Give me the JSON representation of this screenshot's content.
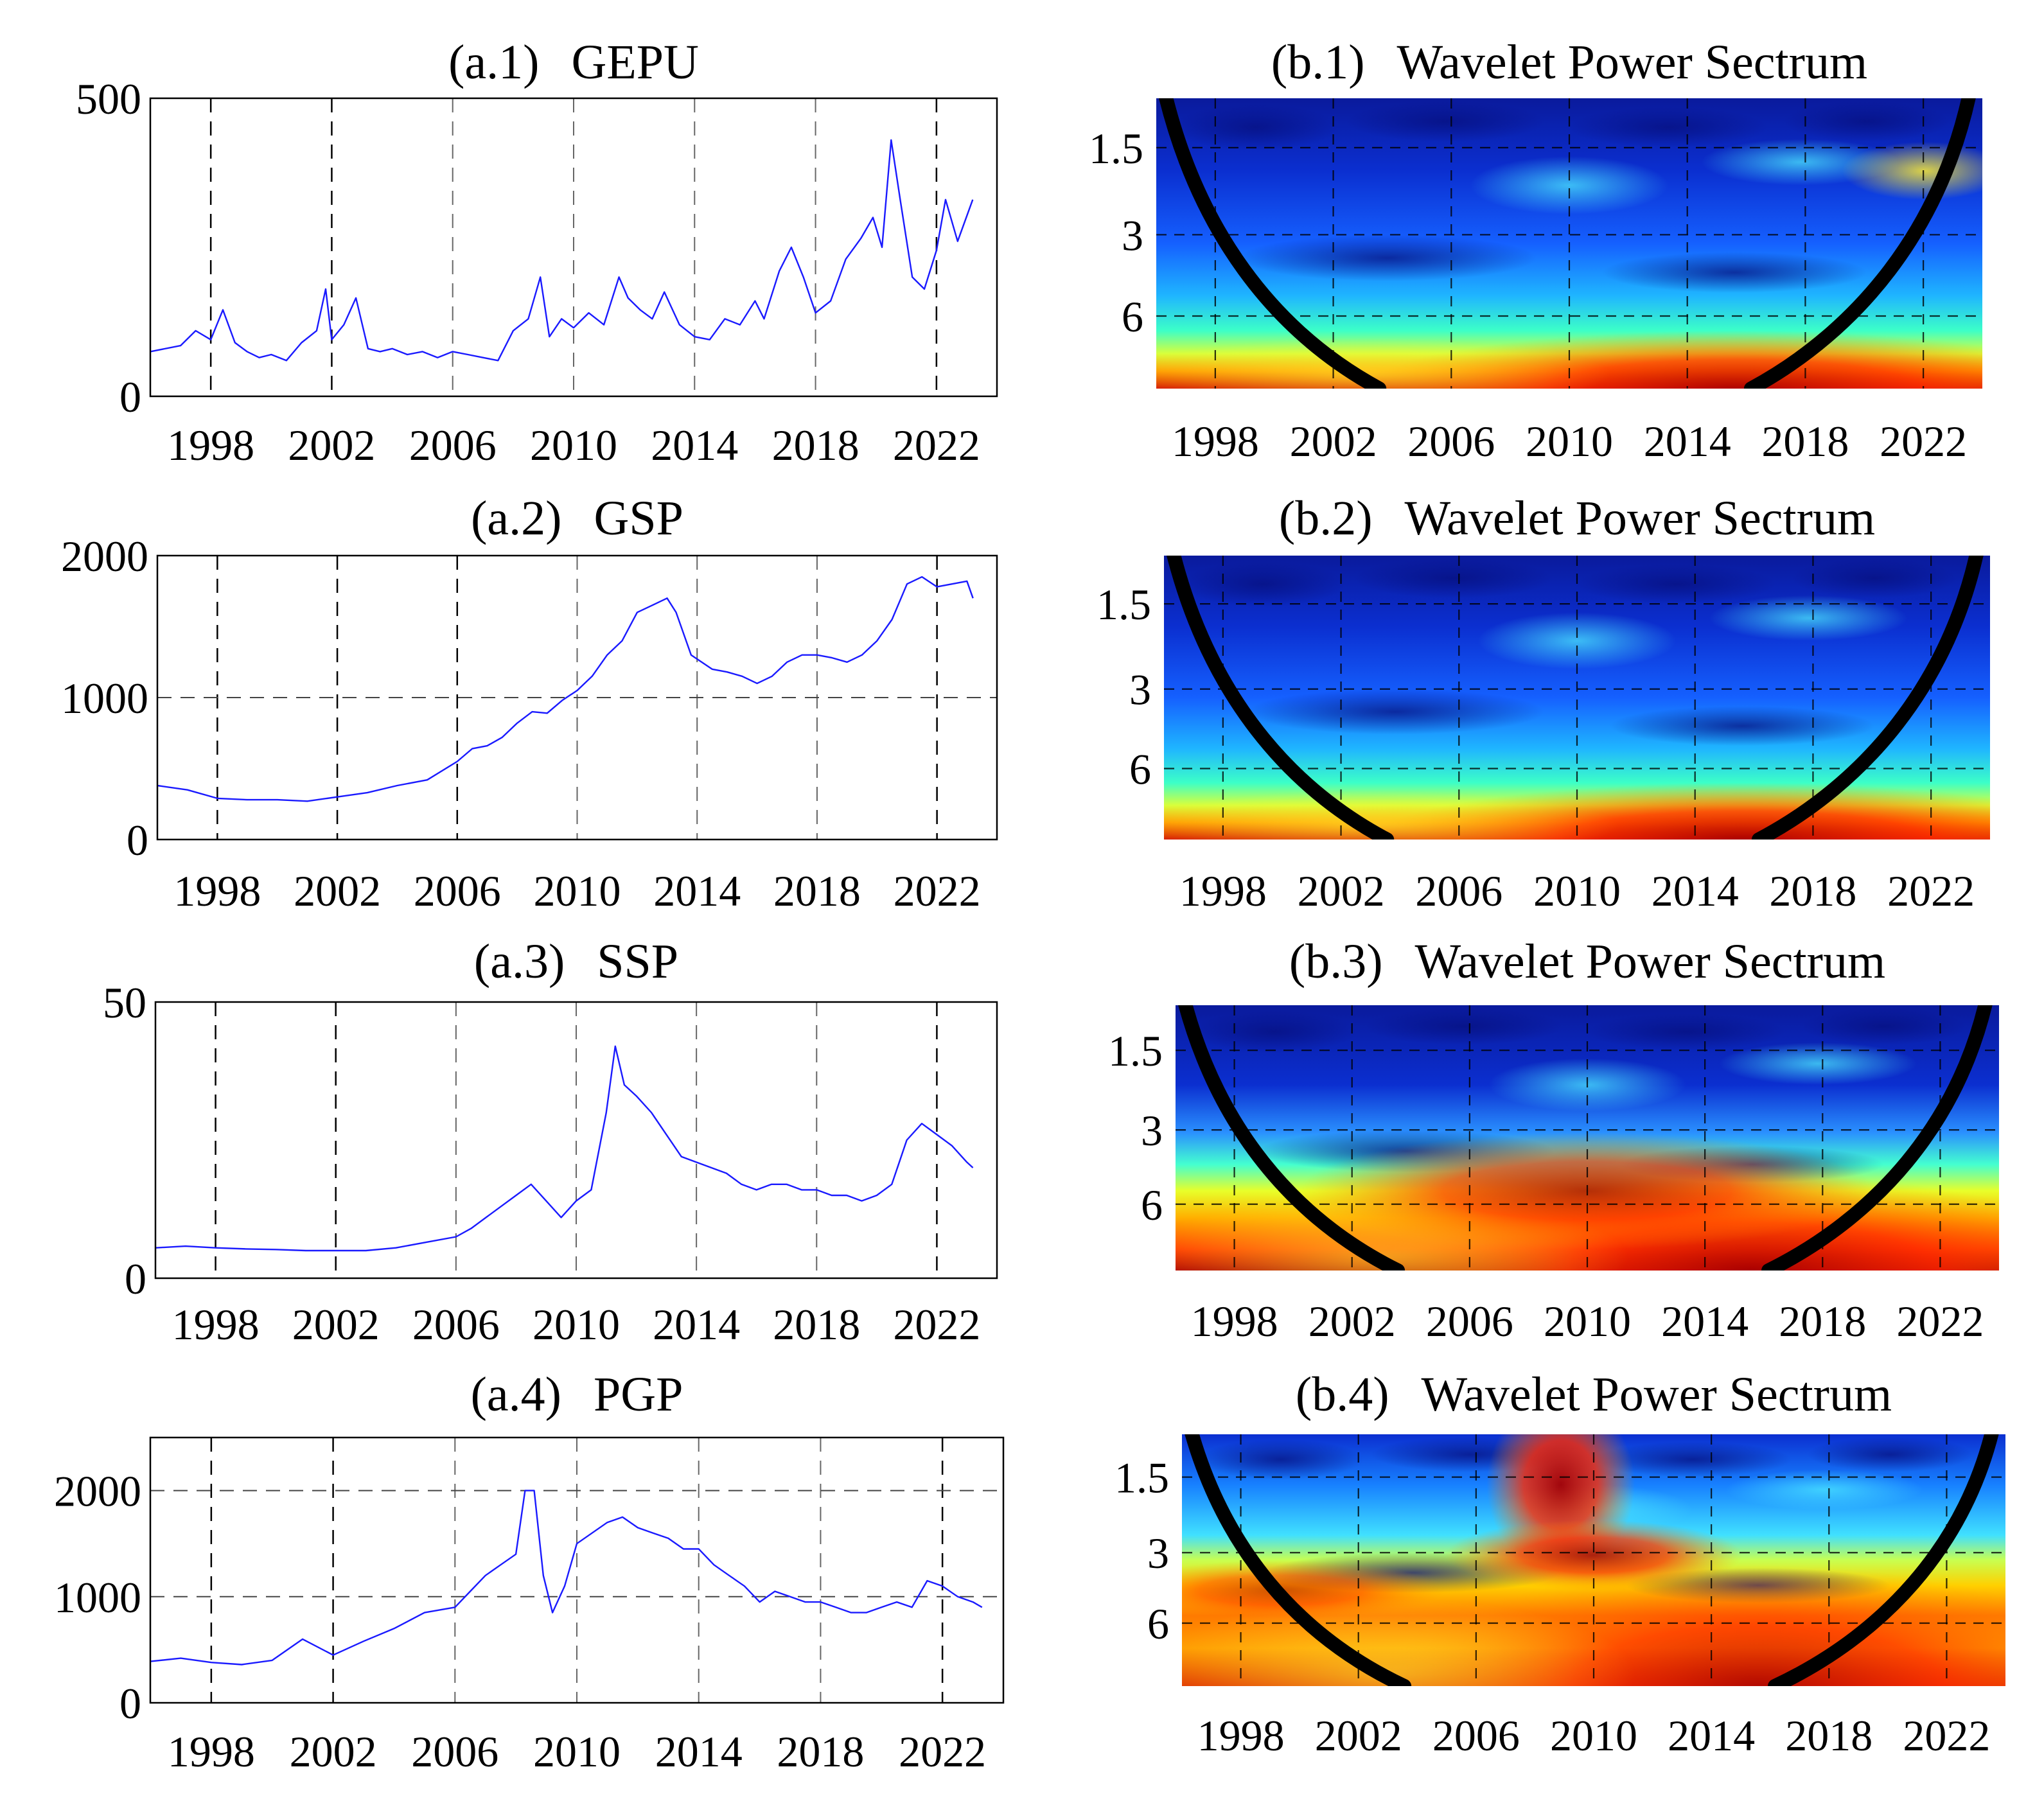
{
  "chart_data": [
    {
      "id": "a1",
      "type": "line",
      "title_id": "(a.1)",
      "title_name": "GEPU",
      "ylim": [
        0,
        500
      ],
      "yticks": [
        0,
        500
      ],
      "xlim": [
        1996.0,
        2024.0
      ],
      "xticks": [
        1998,
        2002,
        2006,
        2010,
        2014,
        2018,
        2022
      ],
      "vlines": [
        1998,
        2002,
        2006,
        2010,
        2014,
        2018,
        2022
      ],
      "dark_vlines": [
        1998,
        2002,
        2022
      ],
      "hlines": [],
      "x": [
        1996.0,
        1997.0,
        1997.5,
        1998.0,
        1998.4,
        1998.8,
        1999.2,
        1999.6,
        2000.0,
        2000.5,
        2001.0,
        2001.5,
        2001.8,
        2002.0,
        2002.4,
        2002.8,
        2003.2,
        2003.6,
        2004.0,
        2004.5,
        2005.0,
        2005.5,
        2006.0,
        2006.5,
        2007.0,
        2007.5,
        2008.0,
        2008.5,
        2008.9,
        2009.2,
        2009.6,
        2010.0,
        2010.5,
        2011.0,
        2011.5,
        2011.8,
        2012.2,
        2012.6,
        2013.0,
        2013.5,
        2014.0,
        2014.5,
        2015.0,
        2015.5,
        2016.0,
        2016.3,
        2016.8,
        2017.2,
        2017.6,
        2018.0,
        2018.5,
        2019.0,
        2019.5,
        2019.9,
        2020.2,
        2020.5,
        2020.8,
        2021.2,
        2021.6,
        2022.0,
        2022.3,
        2022.7,
        2023.2
      ],
      "values": [
        75,
        85,
        110,
        95,
        145,
        90,
        75,
        65,
        70,
        60,
        90,
        110,
        180,
        95,
        120,
        165,
        80,
        75,
        80,
        70,
        75,
        65,
        75,
        70,
        65,
        60,
        110,
        130,
        200,
        100,
        130,
        115,
        140,
        120,
        200,
        165,
        145,
        130,
        175,
        120,
        100,
        95,
        130,
        120,
        160,
        130,
        210,
        250,
        200,
        140,
        160,
        230,
        265,
        300,
        250,
        430,
        330,
        200,
        180,
        245,
        330,
        260,
        330
      ]
    },
    {
      "id": "a2",
      "type": "line",
      "title_id": "(a.2)",
      "title_name": "GSP",
      "ylim": [
        0,
        2000
      ],
      "yticks": [
        0,
        1000,
        2000
      ],
      "xlim": [
        1996.0,
        2024.0
      ],
      "xticks": [
        1998,
        2002,
        2006,
        2010,
        2014,
        2018,
        2022
      ],
      "vlines": [
        1998,
        2002,
        2006,
        2010,
        2014,
        2018,
        2022
      ],
      "dark_vlines": [
        1998,
        2002,
        2006,
        2022
      ],
      "hlines": [
        1000
      ],
      "x": [
        1996.0,
        1997.0,
        1998.0,
        1999.0,
        2000.0,
        2001.0,
        2002.0,
        2003.0,
        2004.0,
        2005.0,
        2006.0,
        2006.5,
        2007.0,
        2007.5,
        2008.0,
        2008.5,
        2009.0,
        2009.5,
        2010.0,
        2010.5,
        2011.0,
        2011.5,
        2012.0,
        2012.5,
        2013.0,
        2013.3,
        2013.8,
        2014.5,
        2015.0,
        2015.5,
        2016.0,
        2016.5,
        2017.0,
        2017.5,
        2018.0,
        2018.5,
        2019.0,
        2019.5,
        2020.0,
        2020.5,
        2021.0,
        2021.5,
        2022.0,
        2022.5,
        2023.0,
        2023.2
      ],
      "values": [
        380,
        350,
        290,
        280,
        280,
        270,
        300,
        330,
        380,
        420,
        550,
        640,
        660,
        720,
        820,
        900,
        890,
        980,
        1050,
        1150,
        1300,
        1400,
        1600,
        1650,
        1700,
        1600,
        1300,
        1200,
        1180,
        1150,
        1100,
        1150,
        1250,
        1300,
        1300,
        1280,
        1250,
        1300,
        1400,
        1550,
        1800,
        1850,
        1780,
        1800,
        1820,
        1700
      ]
    },
    {
      "id": "a3",
      "type": "line",
      "title_id": "(a.3)",
      "title_name": "SSP",
      "ylim": [
        0,
        50
      ],
      "yticks": [
        0,
        50
      ],
      "xlim": [
        1996.0,
        2024.0
      ],
      "xticks": [
        1998,
        2002,
        2006,
        2010,
        2014,
        2018,
        2022
      ],
      "vlines": [
        1998,
        2002,
        2006,
        2010,
        2014,
        2018,
        2022
      ],
      "dark_vlines": [
        1998,
        2002,
        2022
      ],
      "hlines": [],
      "x": [
        1996.0,
        1997.0,
        1998.0,
        1999.0,
        2000.0,
        2001.0,
        2002.0,
        2003.0,
        2004.0,
        2005.0,
        2006.0,
        2006.5,
        2007.0,
        2007.5,
        2008.0,
        2008.5,
        2009.0,
        2009.5,
        2010.0,
        2010.5,
        2011.0,
        2011.3,
        2011.6,
        2012.0,
        2012.5,
        2013.0,
        2013.5,
        2014.0,
        2014.5,
        2015.0,
        2015.5,
        2016.0,
        2016.5,
        2017.0,
        2017.5,
        2018.0,
        2018.5,
        2019.0,
        2019.5,
        2020.0,
        2020.5,
        2021.0,
        2021.5,
        2022.0,
        2022.5,
        2023.0,
        2023.2
      ],
      "values": [
        5.5,
        5.8,
        5.5,
        5.3,
        5.2,
        5.0,
        5.0,
        5.0,
        5.5,
        6.5,
        7.5,
        9,
        11,
        13,
        15,
        17,
        14,
        11,
        14,
        16,
        30,
        42,
        35,
        33,
        30,
        26,
        22,
        21,
        20,
        19,
        17,
        16,
        17,
        17,
        16,
        16,
        15,
        15,
        14,
        15,
        17,
        25,
        28,
        26,
        24,
        21,
        20
      ]
    },
    {
      "id": "a4",
      "type": "line",
      "title_id": "(a.4)",
      "title_name": "PGP",
      "ylim": [
        0,
        2500
      ],
      "yticks": [
        0,
        1000,
        2000
      ],
      "xlim": [
        1996.0,
        2024.0
      ],
      "xticks": [
        1998,
        2002,
        2006,
        2010,
        2014,
        2018,
        2022
      ],
      "vlines": [
        1998,
        2002,
        2006,
        2010,
        2014,
        2018,
        2022
      ],
      "dark_vlines": [
        1998,
        2002,
        2022
      ],
      "hlines": [
        1000,
        2000
      ],
      "x": [
        1996.0,
        1997.0,
        1998.0,
        1999.0,
        2000.0,
        2001.0,
        2002.0,
        2003.0,
        2004.0,
        2005.0,
        2006.0,
        2006.5,
        2007.0,
        2007.5,
        2008.0,
        2008.3,
        2008.6,
        2008.9,
        2009.2,
        2009.6,
        2010.0,
        2010.5,
        2011.0,
        2011.5,
        2012.0,
        2012.5,
        2013.0,
        2013.5,
        2014.0,
        2014.5,
        2015.0,
        2015.5,
        2016.0,
        2016.5,
        2017.0,
        2017.5,
        2018.0,
        2018.5,
        2019.0,
        2019.5,
        2020.0,
        2020.5,
        2021.0,
        2021.5,
        2022.0,
        2022.5,
        2023.0,
        2023.3
      ],
      "values": [
        390,
        420,
        380,
        360,
        400,
        600,
        450,
        580,
        700,
        850,
        900,
        1050,
        1200,
        1300,
        1400,
        2000,
        2000,
        1200,
        850,
        1100,
        1500,
        1600,
        1700,
        1750,
        1650,
        1600,
        1550,
        1450,
        1450,
        1300,
        1200,
        1100,
        950,
        1050,
        1000,
        950,
        950,
        900,
        850,
        850,
        900,
        950,
        900,
        1150,
        1100,
        1000,
        950,
        900
      ]
    },
    {
      "id": "b1",
      "type": "heatmap",
      "title_id": "(b.1)",
      "title_name": "Wavelet Power Sectrum",
      "xlim": [
        1996.0,
        2024.0
      ],
      "xticks": [
        1998,
        2002,
        2006,
        2010,
        2014,
        2018,
        2022
      ],
      "yticks": [
        "1.5",
        "3",
        "6"
      ],
      "hot_fraction": 0.25,
      "hot_intensity": 0.9
    },
    {
      "id": "b2",
      "type": "heatmap",
      "title_id": "(b.2)",
      "title_name": "Wavelet Power Sectrum",
      "xlim": [
        1996.0,
        2024.0
      ],
      "xticks": [
        1998,
        2002,
        2006,
        2010,
        2014,
        2018,
        2022
      ],
      "yticks": [
        "1.5",
        "3",
        "6"
      ],
      "hot_fraction": 0.25,
      "hot_intensity": 0.95
    },
    {
      "id": "b3",
      "type": "heatmap",
      "title_id": "(b.3)",
      "title_name": "Wavelet Power Sectrum",
      "xlim": [
        1996.0,
        2024.0
      ],
      "xticks": [
        1998,
        2002,
        2006,
        2010,
        2014,
        2018,
        2022
      ],
      "yticks": [
        "1.5",
        "3",
        "6"
      ],
      "hot_fraction": 0.45,
      "hot_intensity": 0.9
    },
    {
      "id": "b4",
      "type": "heatmap",
      "title_id": "(b.4)",
      "title_name": "Wavelet Power Sectrum",
      "xlim": [
        1996.0,
        2024.0
      ],
      "xticks": [
        1998,
        2002,
        2006,
        2010,
        2014,
        2018,
        2022
      ],
      "yticks": [
        "1.5",
        "3",
        "6"
      ],
      "hot_fraction": 0.6,
      "hot_intensity": 0.85
    }
  ]
}
